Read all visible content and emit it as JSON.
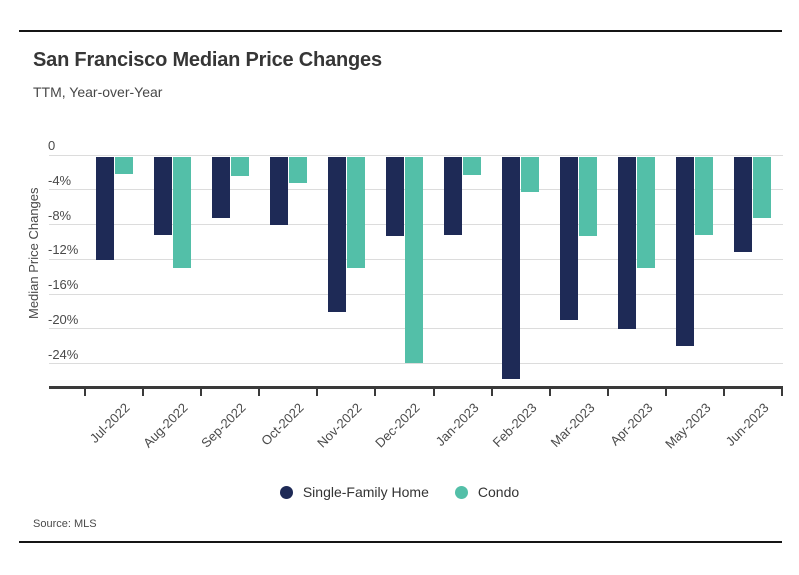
{
  "header": {
    "title": "San Francisco Median Price Changes",
    "subtitle": "TTM, Year-over-Year"
  },
  "footer": {
    "source": "Source: MLS"
  },
  "colors": {
    "single_family": "#1e2a56",
    "condo": "#53bfa8",
    "gridline": "#dcdcdc",
    "axis": "#3a3a3a"
  },
  "chart_data": {
    "type": "bar",
    "title": "San Francisco Median Price Changes",
    "subtitle": "TTM, Year-over-Year",
    "xlabel": "",
    "ylabel": "Median Price Changes",
    "unit": "%",
    "categories": [
      "Jul-2022",
      "Aug-2022",
      "Sep-2022",
      "Oct-2022",
      "Nov-2022",
      "Dec-2022",
      "Jan-2023",
      "Feb-2023",
      "Mar-2023",
      "Apr-2023",
      "May-2023",
      "Jun-2023"
    ],
    "series": [
      {
        "name": "Single-Family Home",
        "color": "#1e2a56",
        "values": [
          -12.1,
          -9.2,
          -7.2,
          -8.0,
          -18.1,
          -9.3,
          -9.2,
          -25.8,
          -19.0,
          -20.0,
          -22.0,
          -11.2
        ]
      },
      {
        "name": "Condo",
        "color": "#53bfa8",
        "values": [
          -2.2,
          -13.0,
          -2.4,
          -3.2,
          -13.0,
          -23.9,
          -2.3,
          -4.2,
          -9.3,
          -13.0,
          -9.2,
          -7.2
        ]
      }
    ],
    "ylim": [
      -26.8,
      0
    ],
    "yticks": {
      "values": [
        0,
        -4,
        -8,
        -12,
        -16,
        -20,
        -24
      ],
      "labels": [
        "0",
        "-4%",
        "-8%",
        "-12%",
        "-16%",
        "-20%",
        "-24%"
      ]
    },
    "grid": true,
    "legend_position": "bottom",
    "source": "Source: MLS"
  }
}
